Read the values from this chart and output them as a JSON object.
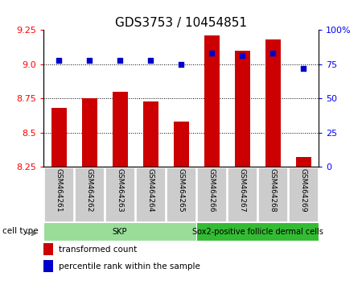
{
  "title": "GDS3753 / 10454851",
  "samples": [
    "GSM464261",
    "GSM464262",
    "GSM464263",
    "GSM464264",
    "GSM464265",
    "GSM464266",
    "GSM464267",
    "GSM464268",
    "GSM464269"
  ],
  "transformed_count": [
    8.68,
    8.75,
    8.8,
    8.73,
    8.58,
    9.21,
    9.1,
    9.18,
    8.32
  ],
  "percentile_rank": [
    78,
    78,
    78,
    78,
    75,
    83,
    81,
    83,
    72
  ],
  "ylim_left": [
    8.25,
    9.25
  ],
  "ylim_right": [
    0,
    100
  ],
  "yticks_left": [
    8.25,
    8.5,
    8.75,
    9.0,
    9.25
  ],
  "yticks_right": [
    0,
    25,
    50,
    75,
    100
  ],
  "ytick_labels_right": [
    "0",
    "25",
    "50",
    "75",
    "100%"
  ],
  "bar_color": "#cc0000",
  "dot_color": "#0000cc",
  "cell_type_groups": [
    {
      "label": "SKP",
      "start": 0,
      "end": 5,
      "color": "#99dd99"
    },
    {
      "label": "Sox2-positive follicle dermal cells",
      "start": 5,
      "end": 9,
      "color": "#33bb33"
    }
  ],
  "cell_type_label": "cell type",
  "legend_bar_label": "transformed count",
  "legend_dot_label": "percentile rank within the sample",
  "bar_color_legend": "#cc0000",
  "dot_color_legend": "#0000cc",
  "title_fontsize": 11,
  "tick_fontsize": 8,
  "xtick_fontsize": 6.5
}
